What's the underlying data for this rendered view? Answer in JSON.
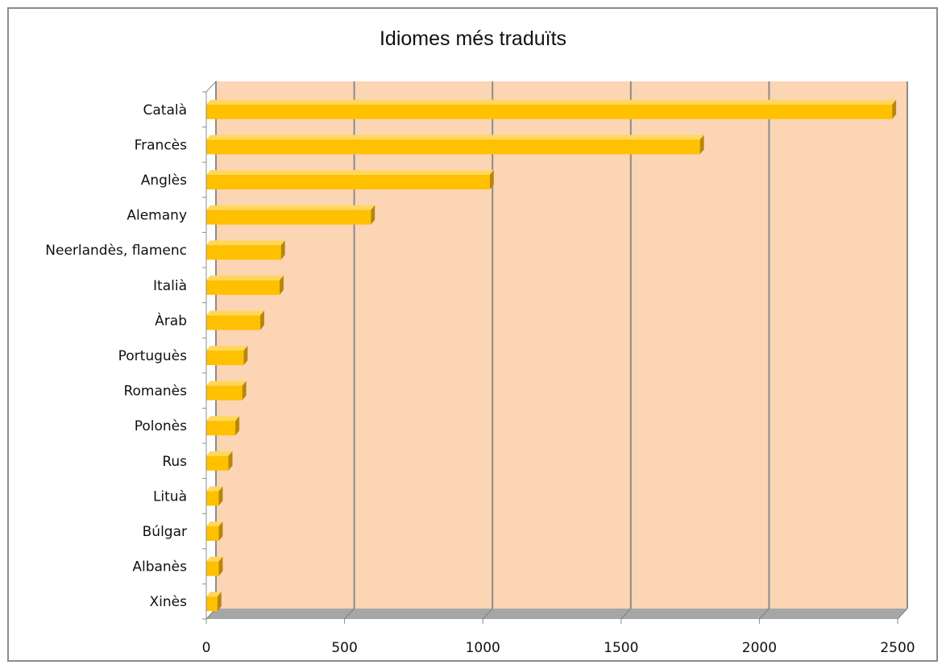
{
  "chart_data": {
    "type": "bar",
    "orientation": "horizontal",
    "style": "3d",
    "title": "Idiomes més traduïts",
    "xlabel": "",
    "ylabel": "",
    "categories": [
      "Català",
      "Francès",
      "Anglès",
      "Alemany",
      "Neerlandès, flamenc",
      "Italià",
      "Àrab",
      "Portuguès",
      "Romanès",
      "Polonès",
      "Rus",
      "Lituà",
      "Búlgar",
      "Albanès",
      "Xinès"
    ],
    "series": [
      {
        "values": [
          2480,
          1785,
          1025,
          595,
          270,
          265,
          195,
          135,
          130,
          105,
          80,
          45,
          45,
          45,
          40
        ],
        "color": "#ffc000"
      }
    ],
    "xlim": [
      0,
      2500
    ],
    "x_ticks": [
      0,
      500,
      1000,
      1500,
      2000,
      2500
    ],
    "grid": true,
    "legend": "none",
    "colors": {
      "plot_background": "#fcd5b5",
      "bar_front": "#ffc000",
      "bar_top": "#ffd75c",
      "bar_side": "#b8860b",
      "gridline": "#8c8c8c",
      "floor": "#a6a6a6",
      "frame_border": "#8c8c8c"
    }
  }
}
